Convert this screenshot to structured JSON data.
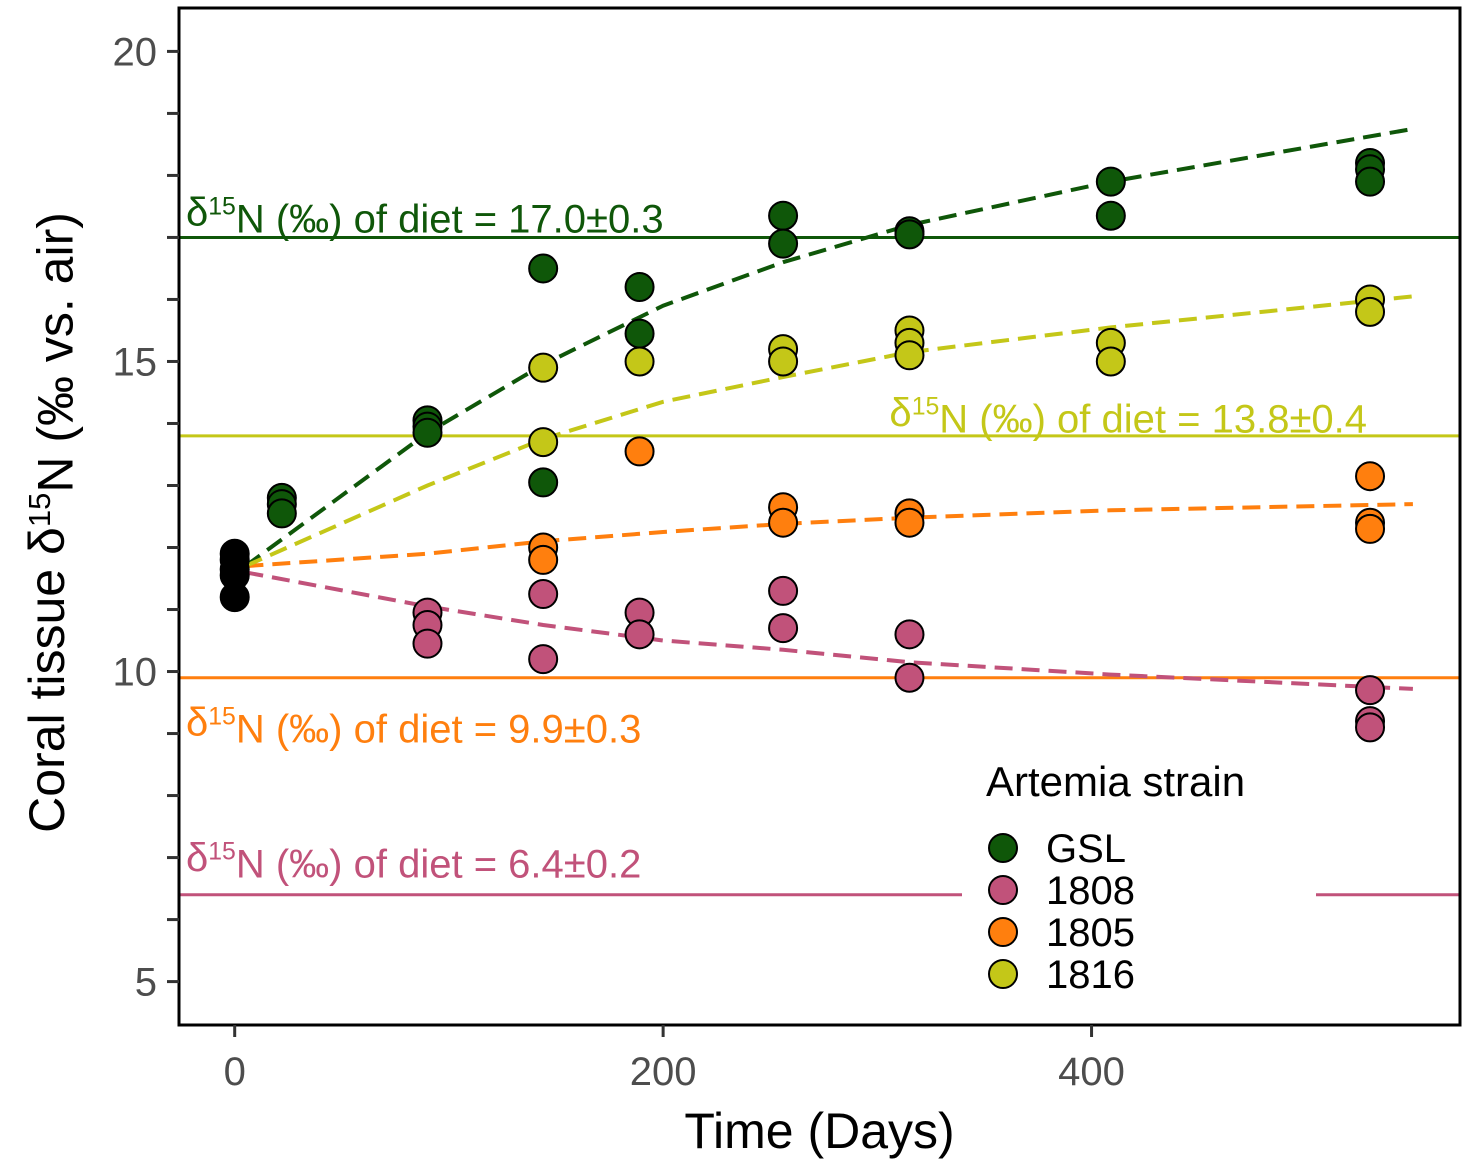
{
  "chart_data": {
    "type": "scatter",
    "xlabel": "Time (Days)",
    "ylabel": "Coral tissue δ15N (‰ vs. air)",
    "ylabel_parts": {
      "before": "Coral tissue δ",
      "sup": "15",
      "after": "N (‰ vs. air)"
    },
    "xlim": [
      -26,
      572
    ],
    "ylim": [
      4.3,
      20.7
    ],
    "x_ticks": [
      0,
      200,
      400
    ],
    "x_tick_labels": [
      "0",
      "200",
      "400"
    ],
    "y_ticks": [
      5,
      10,
      15,
      20
    ],
    "y_tick_labels": [
      "5",
      "10",
      "15",
      "20"
    ],
    "y_minor_ticks": [
      6,
      7,
      8,
      9,
      11,
      12,
      13,
      14,
      16,
      17,
      18,
      19
    ],
    "grid": false,
    "legend_position": "bottom-right",
    "legend_title": "Artemia strain",
    "initial_points": {
      "color": "#000000",
      "points": [
        [
          0,
          11.9
        ],
        [
          0,
          11.8
        ],
        [
          0,
          11.65
        ],
        [
          0,
          11.55
        ],
        [
          0,
          11.2
        ]
      ]
    },
    "series": [
      {
        "name": "GSL",
        "color": "#0f5709",
        "points": [
          [
            22,
            12.8
          ],
          [
            22,
            12.7
          ],
          [
            22,
            12.55
          ],
          [
            90,
            14.05
          ],
          [
            90,
            13.95
          ],
          [
            90,
            13.85
          ],
          [
            144,
            16.5
          ],
          [
            144,
            13.05
          ],
          [
            189,
            16.2
          ],
          [
            189,
            15.45
          ],
          [
            256,
            17.35
          ],
          [
            256,
            16.9
          ],
          [
            315,
            17.1
          ],
          [
            315,
            17.05
          ],
          [
            409,
            17.9
          ],
          [
            409,
            17.35
          ],
          [
            530,
            18.2
          ],
          [
            530,
            18.1
          ],
          [
            530,
            17.9
          ]
        ],
        "fit": [
          [
            5,
            11.7
          ],
          [
            90,
            13.85
          ],
          [
            144,
            14.95
          ],
          [
            200,
            15.9
          ],
          [
            256,
            16.6
          ],
          [
            315,
            17.2
          ],
          [
            409,
            17.9
          ],
          [
            550,
            18.75
          ]
        ],
        "diet_value": 17.0,
        "diet_label_before": "δ",
        "diet_label_sup": "15",
        "diet_label_after": "N (‰) of diet = 17.0±0.3"
      },
      {
        "name": "1808",
        "color": "#c1527a",
        "points": [
          [
            90,
            10.95
          ],
          [
            90,
            10.75
          ],
          [
            90,
            10.45
          ],
          [
            144,
            11.25
          ],
          [
            144,
            10.2
          ],
          [
            189,
            10.95
          ],
          [
            189,
            10.6
          ],
          [
            256,
            11.3
          ],
          [
            256,
            10.7
          ],
          [
            315,
            10.6
          ],
          [
            315,
            9.9
          ],
          [
            530,
            9.7
          ],
          [
            530,
            9.2
          ],
          [
            530,
            9.1
          ]
        ],
        "fit": [
          [
            5,
            11.6
          ],
          [
            90,
            11.05
          ],
          [
            144,
            10.75
          ],
          [
            200,
            10.5
          ],
          [
            256,
            10.35
          ],
          [
            315,
            10.15
          ],
          [
            409,
            9.95
          ],
          [
            550,
            9.72
          ]
        ],
        "diet_value": 6.4,
        "diet_label_before": "δ",
        "diet_label_sup": "15",
        "diet_label_after": "N (‰) of diet = 6.4±0.2"
      },
      {
        "name": "1805",
        "color": "#ff7f0e",
        "points": [
          [
            144,
            12.0
          ],
          [
            144,
            11.8
          ],
          [
            189,
            13.55
          ],
          [
            256,
            12.65
          ],
          [
            256,
            12.4
          ],
          [
            315,
            12.55
          ],
          [
            315,
            12.4
          ],
          [
            530,
            13.15
          ],
          [
            530,
            12.4
          ],
          [
            530,
            12.3
          ]
        ],
        "fit": [
          [
            5,
            11.7
          ],
          [
            90,
            11.9
          ],
          [
            144,
            12.1
          ],
          [
            200,
            12.25
          ],
          [
            256,
            12.38
          ],
          [
            315,
            12.48
          ],
          [
            409,
            12.6
          ],
          [
            550,
            12.7
          ]
        ],
        "diet_value": 9.9,
        "diet_label_before": "δ",
        "diet_label_sup": "15",
        "diet_label_after": "N (‰) of diet = 9.9±0.3"
      },
      {
        "name": "1816",
        "color": "#c4c718",
        "points": [
          [
            144,
            14.9
          ],
          [
            144,
            13.7
          ],
          [
            189,
            15.0
          ],
          [
            256,
            15.2
          ],
          [
            256,
            15.0
          ],
          [
            315,
            15.5
          ],
          [
            315,
            15.3
          ],
          [
            315,
            15.1
          ],
          [
            409,
            15.3
          ],
          [
            409,
            15.0
          ],
          [
            530,
            16.0
          ],
          [
            530,
            15.8
          ]
        ],
        "fit": [
          [
            5,
            11.7
          ],
          [
            90,
            13.0
          ],
          [
            144,
            13.75
          ],
          [
            200,
            14.35
          ],
          [
            256,
            14.75
          ],
          [
            315,
            15.15
          ],
          [
            409,
            15.55
          ],
          [
            550,
            16.05
          ]
        ],
        "diet_value": 13.8,
        "diet_label_before": "δ",
        "diet_label_sup": "15",
        "diet_label_after": "N (‰) of diet = 13.8±0.4"
      }
    ]
  }
}
